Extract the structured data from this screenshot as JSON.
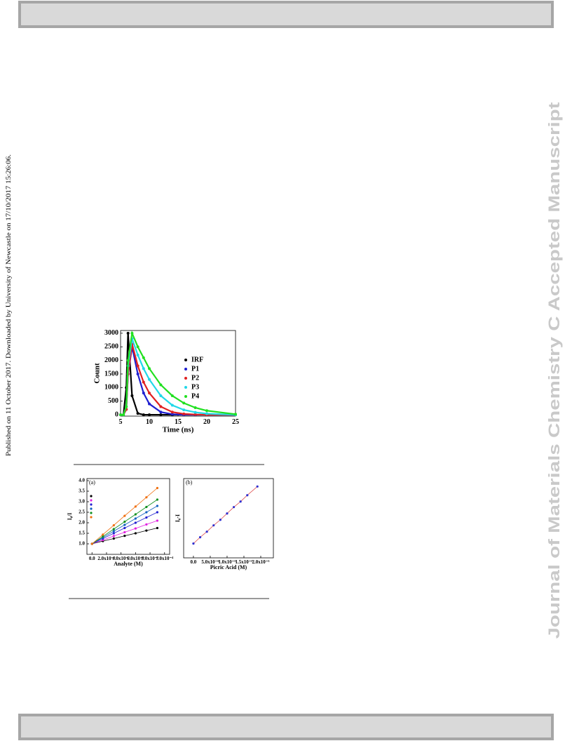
{
  "side_note": "Published on 11 October 2017. Downloaded by University of Newcastle on 17/10/2017 15:26:06.",
  "watermark": "Journal of Materials Chemistry C Accepted Manuscript",
  "chart_data": [
    {
      "type": "line",
      "x_label": "Time (ns)",
      "y_label": "Count",
      "x": [
        5,
        5.5,
        6,
        6.3,
        7,
        8,
        9,
        10,
        12,
        14,
        16,
        18,
        20,
        25
      ],
      "xlim": [
        5,
        25
      ],
      "xticks": [
        5,
        10,
        15,
        20,
        25
      ],
      "ylim": [
        -50,
        3100
      ],
      "yticks": [
        0,
        500,
        1000,
        1500,
        2000,
        2500,
        3000
      ],
      "legend": "right",
      "series": [
        {
          "name": "IRF",
          "color": "#000000",
          "values": [
            0,
            0,
            1000,
            3000,
            700,
            50,
            0,
            0,
            0,
            0,
            0,
            0,
            0,
            0
          ]
        },
        {
          "name": "P1",
          "color": "#1f1fd0",
          "values": [
            0,
            0,
            200,
            1500,
            2500,
            1500,
            800,
            400,
            100,
            20,
            0,
            0,
            0,
            0
          ]
        },
        {
          "name": "P2",
          "color": "#e02020",
          "values": [
            0,
            0,
            200,
            1500,
            2600,
            1800,
            1200,
            800,
            300,
            100,
            30,
            10,
            0,
            0
          ]
        },
        {
          "name": "P3",
          "color": "#20d8e8",
          "values": [
            0,
            0,
            300,
            1800,
            2800,
            2200,
            1700,
            1300,
            700,
            350,
            180,
            90,
            40,
            0
          ]
        },
        {
          "name": "P4",
          "color": "#20e020",
          "values": [
            0,
            0,
            300,
            2000,
            3000,
            2500,
            2100,
            1700,
            1100,
            700,
            430,
            260,
            150,
            20
          ]
        }
      ]
    },
    {
      "type": "line",
      "title": "(a)",
      "x_label": "Analyte (M)",
      "y_label": "I₀/I",
      "x": [
        0,
        1.5e-05,
        3e-05,
        4.5e-05,
        6e-05,
        7.5e-05,
        9e-05
      ],
      "xlim": [
        -7e-06,
        0.000107
      ],
      "xticks": [
        {
          "value": 0,
          "label": "0.0"
        },
        {
          "value": 2e-05,
          "label": "2.0x10⁻⁵"
        },
        {
          "value": 4e-05,
          "label": "4.0x10⁻⁵"
        },
        {
          "value": 6e-05,
          "label": "6.0x10⁻⁵"
        },
        {
          "value": 8e-05,
          "label": "8.0x10⁻⁵"
        },
        {
          "value": 0.0001,
          "label": "1.0x10⁻⁴"
        }
      ],
      "ylim": [
        0.5,
        4.1
      ],
      "yticks": [
        {
          "value": 1,
          "label": "1.0"
        },
        {
          "value": 1.5,
          "label": "1.5"
        },
        {
          "value": 2,
          "label": "2.0"
        },
        {
          "value": 2.5,
          "label": "2.5"
        },
        {
          "value": 3,
          "label": "3.0"
        },
        {
          "value": 3.5,
          "label": "3.5"
        },
        {
          "value": 4,
          "label": "4.0"
        }
      ],
      "legend": "upper left",
      "series": [
        {
          "color": "#000000",
          "values": [
            1.0,
            1.13,
            1.25,
            1.38,
            1.5,
            1.63,
            1.75
          ]
        },
        {
          "color": "#e020e0",
          "values": [
            1.0,
            1.18,
            1.37,
            1.55,
            1.73,
            1.92,
            2.1
          ]
        },
        {
          "color": "#2020d0",
          "values": [
            1.0,
            1.25,
            1.5,
            1.75,
            2.0,
            2.25,
            2.5
          ]
        },
        {
          "color": "#1060c0",
          "values": [
            1.0,
            1.3,
            1.6,
            1.9,
            2.2,
            2.5,
            2.8
          ]
        },
        {
          "color": "#109020",
          "values": [
            1.0,
            1.35,
            1.7,
            2.05,
            2.4,
            2.75,
            3.1
          ]
        },
        {
          "color": "#f07010",
          "values": [
            1.0,
            1.44,
            1.88,
            2.33,
            2.77,
            3.21,
            3.65
          ]
        }
      ]
    },
    {
      "type": "line",
      "title": "(b)",
      "x_label": "Picric Acid (M)",
      "y_label": "I₀-I",
      "x": [
        0,
        2e-06,
        4e-06,
        6e-06,
        8e-06,
        1e-05,
        1.2e-05,
        1.4e-05,
        1.6e-05,
        1.9e-05
      ],
      "xlim": [
        -2.9e-06,
        2.375e-05
      ],
      "xticks": [
        {
          "value": 0,
          "label": "0.0"
        },
        {
          "value": 5e-06,
          "label": "5.0x10⁻⁶"
        },
        {
          "value": 1e-05,
          "label": "1.0x10⁻⁵"
        },
        {
          "value": 1.5e-05,
          "label": "1.5x10⁻⁵"
        },
        {
          "value": 2e-05,
          "label": "2.0x10⁻⁵"
        }
      ],
      "ylim": [
        0,
        100
      ],
      "series": [
        {
          "color": "#3030d0",
          "line_color": "#e05050",
          "values": [
            18,
            26,
            33,
            41,
            48,
            56,
            64,
            71,
            79,
            90
          ]
        }
      ]
    }
  ]
}
